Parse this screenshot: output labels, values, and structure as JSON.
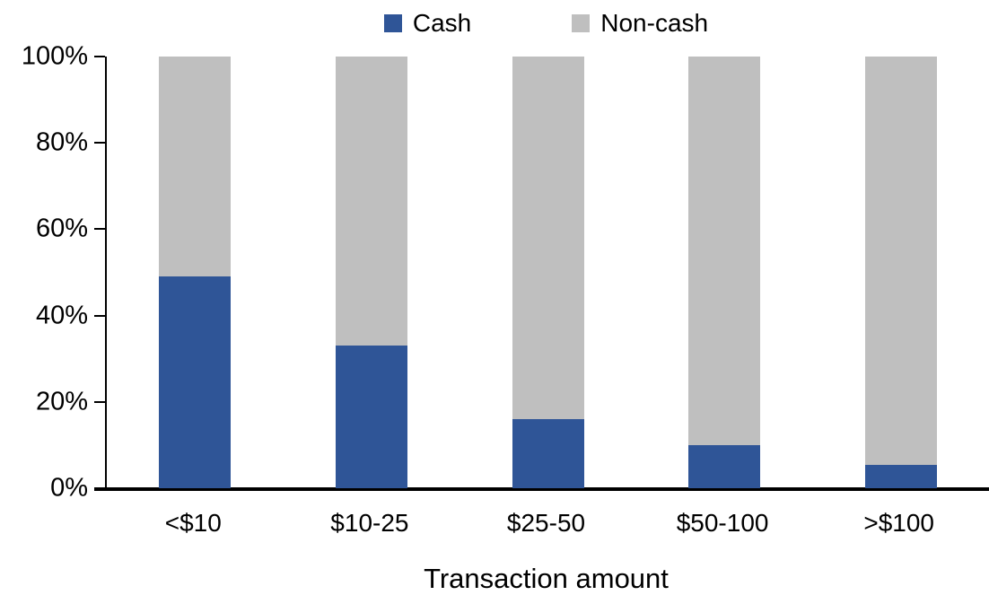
{
  "chart_data": {
    "type": "bar",
    "stacked": true,
    "orientation": "vertical",
    "title": "",
    "xlabel": "Transaction amount",
    "ylabel": "",
    "categories": [
      "<$10",
      "$10-25",
      "$25-50",
      "$50-100",
      ">$100"
    ],
    "series": [
      {
        "name": "Cash",
        "color": "#2F5597",
        "values": [
          49,
          33,
          16,
          10,
          5.5
        ]
      },
      {
        "name": "Non-cash",
        "color": "#BFBFBF",
        "values": [
          51,
          67,
          84,
          90,
          94.5
        ]
      }
    ],
    "ylim": [
      0,
      100
    ],
    "yticks": [
      {
        "value": 0,
        "label": "0%"
      },
      {
        "value": 20,
        "label": "20%"
      },
      {
        "value": 40,
        "label": "40%"
      },
      {
        "value": 60,
        "label": "60%"
      },
      {
        "value": 80,
        "label": "80%"
      },
      {
        "value": 100,
        "label": "100%"
      }
    ],
    "legend_position": "top",
    "grid": false,
    "axis_color": "#000000",
    "background_color": "#FFFFFF"
  }
}
